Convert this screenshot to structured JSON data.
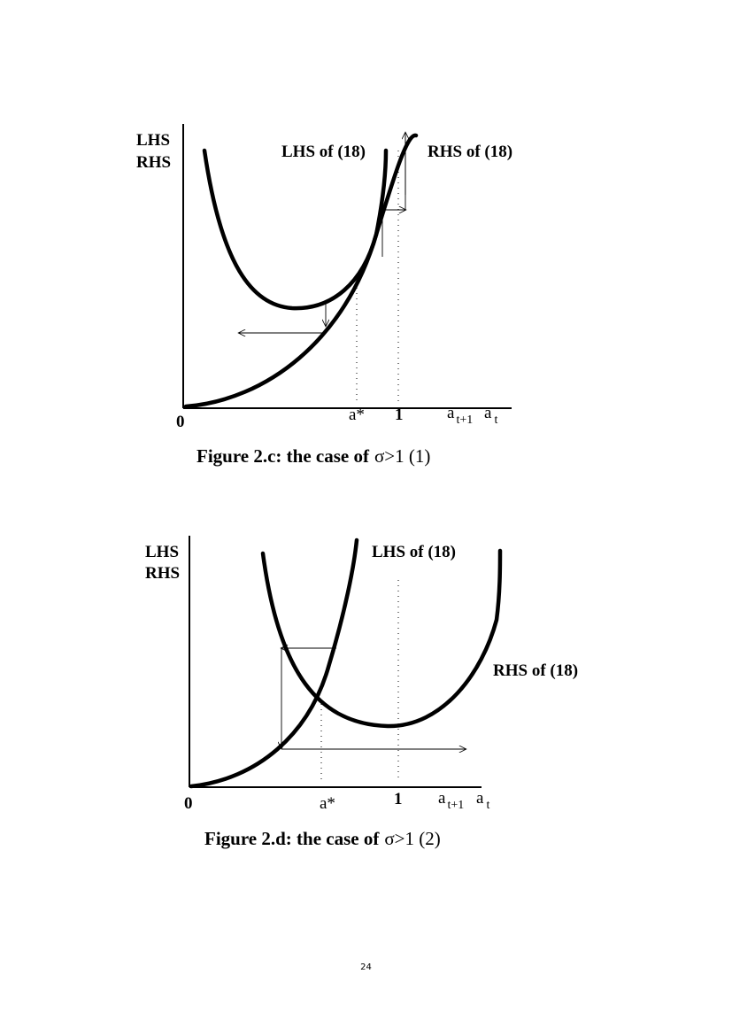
{
  "figures": [
    {
      "y_axis_label_1": "LHS",
      "y_axis_label_2": "RHS",
      "curve_label_lhs": "LHS of (18)",
      "curve_label_rhs": "RHS of (18)",
      "x_origin": "0",
      "x_tick_astar": "a*",
      "x_tick_one": "1",
      "x_label_at1": "a",
      "x_label_at1_sub": "t+1",
      "x_label_at": "a",
      "x_label_at_sub": "t",
      "caption": "Figure 2.c: the case of",
      "caption_symbol": "σ>1 (1)"
    },
    {
      "y_axis_label_1": "LHS",
      "y_axis_label_2": "RHS",
      "curve_label_lhs": "LHS of (18)",
      "curve_label_rhs": "RHS of (18)",
      "x_origin": "0",
      "x_tick_astar": "a*",
      "x_tick_one": "1",
      "x_label_at1": "a",
      "x_label_at1_sub": "t+1",
      "x_label_at": "a",
      "x_label_at_sub": "t",
      "caption": "Figure 2.d: the case of",
      "caption_symbol": "σ>1 (2)"
    }
  ],
  "page_number": "24"
}
